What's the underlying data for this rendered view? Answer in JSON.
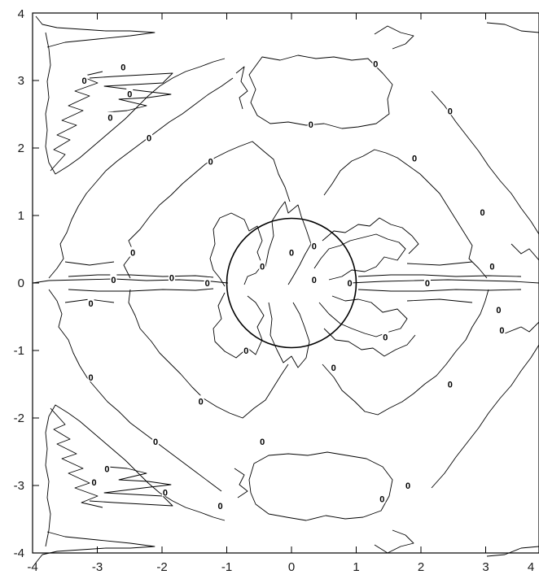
{
  "chart_data": {
    "type": "contour",
    "title": "",
    "xlabel": "",
    "ylabel": "",
    "xlim": [
      -4,
      4
    ],
    "ylim": [
      -4,
      4
    ],
    "x_ticks": [
      "-4",
      "-3",
      "-2",
      "-1",
      "0",
      "1",
      "2",
      "3",
      "4"
    ],
    "y_ticks": [
      "4",
      "3",
      "2",
      "1",
      "0",
      "-1",
      "-2",
      "-3",
      "-4"
    ],
    "contour_level": "0",
    "overlay": {
      "shape": "circle",
      "center": [
        0,
        0
      ],
      "radius": 1
    },
    "contour_labels": [
      {
        "x": -3.2,
        "y": 3.0
      },
      {
        "x": -2.6,
        "y": 3.2
      },
      {
        "x": -2.5,
        "y": 2.8
      },
      {
        "x": -2.8,
        "y": 2.45
      },
      {
        "x": -2.2,
        "y": 2.15
      },
      {
        "x": 1.3,
        "y": 3.25
      },
      {
        "x": 0.3,
        "y": 2.35
      },
      {
        "x": 2.45,
        "y": 2.55
      },
      {
        "x": 1.9,
        "y": 1.85
      },
      {
        "x": -1.25,
        "y": 1.8
      },
      {
        "x": 2.95,
        "y": 1.05
      },
      {
        "x": -2.45,
        "y": 0.45
      },
      {
        "x": -2.75,
        "y": 0.05
      },
      {
        "x": -1.85,
        "y": 0.08
      },
      {
        "x": -1.3,
        "y": 0.0
      },
      {
        "x": -0.45,
        "y": 0.25
      },
      {
        "x": 0.0,
        "y": 0.45
      },
      {
        "x": 0.35,
        "y": 0.55
      },
      {
        "x": 0.35,
        "y": 0.05
      },
      {
        "x": 0.9,
        "y": 0.0
      },
      {
        "x": 2.1,
        "y": 0.0
      },
      {
        "x": 3.1,
        "y": 0.25
      },
      {
        "x": 3.2,
        "y": -0.4
      },
      {
        "x": 3.25,
        "y": -0.7
      },
      {
        "x": -3.1,
        "y": -0.3
      },
      {
        "x": 1.45,
        "y": -0.8
      },
      {
        "x": -0.7,
        "y": -1.0
      },
      {
        "x": 0.65,
        "y": -1.25
      },
      {
        "x": -3.1,
        "y": -1.4
      },
      {
        "x": 2.45,
        "y": -1.5
      },
      {
        "x": -1.4,
        "y": -1.75
      },
      {
        "x": -2.1,
        "y": -2.35
      },
      {
        "x": -0.45,
        "y": -2.35
      },
      {
        "x": -2.85,
        "y": -2.75
      },
      {
        "x": -3.05,
        "y": -2.95
      },
      {
        "x": -1.95,
        "y": -3.1
      },
      {
        "x": 1.8,
        "y": -3.0
      },
      {
        "x": 1.4,
        "y": -3.2
      },
      {
        "x": -1.1,
        "y": -3.3
      }
    ]
  }
}
